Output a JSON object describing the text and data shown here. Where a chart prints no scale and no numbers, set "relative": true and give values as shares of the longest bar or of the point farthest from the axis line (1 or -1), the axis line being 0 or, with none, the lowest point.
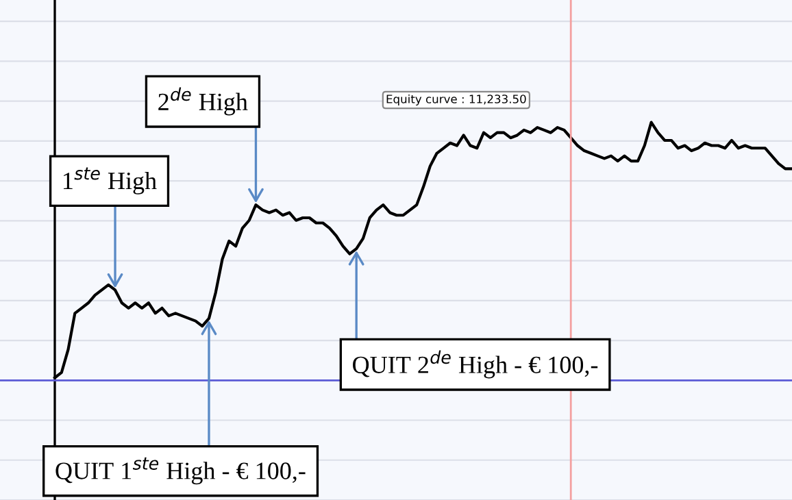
{
  "chart_data": {
    "type": "line",
    "relative": true,
    "grid": "y",
    "categories": [
      null,
      null,
      null,
      null,
      null,
      null,
      null,
      null,
      null,
      null,
      null,
      null,
      null,
      null,
      null,
      null,
      null,
      null,
      null,
      null,
      null,
      null,
      null,
      null,
      null,
      null,
      null,
      null,
      null,
      null,
      null,
      null,
      null,
      null,
      null,
      null,
      null,
      null,
      null,
      null,
      null,
      null,
      null,
      null,
      null,
      null,
      null,
      null,
      null,
      null,
      null,
      null,
      null,
      null,
      null,
      null,
      null,
      null,
      null,
      null,
      null,
      null,
      null,
      null,
      null,
      null,
      null,
      null,
      null,
      null,
      null,
      null,
      null,
      null,
      null,
      null,
      null,
      null,
      null,
      null,
      null,
      null,
      null,
      null,
      null,
      null,
      null,
      null,
      null,
      null,
      null,
      null,
      null,
      null,
      null,
      null,
      null,
      null,
      null,
      null,
      null,
      null,
      null,
      null,
      null,
      null,
      null,
      null,
      null,
      null,
      null
    ],
    "series": [
      {
        "color": "#000000",
        "values": [
          0.01,
          0.03,
          0.12,
          0.26,
          0.28,
          0.3,
          0.33,
          0.35,
          0.37,
          0.35,
          0.3,
          0.28,
          0.3,
          0.28,
          0.3,
          0.26,
          0.28,
          0.25,
          0.26,
          0.25,
          0.24,
          0.23,
          0.21,
          0.24,
          0.34,
          0.47,
          0.54,
          0.52,
          0.59,
          0.62,
          0.68,
          0.66,
          0.65,
          0.66,
          0.64,
          0.65,
          0.62,
          0.63,
          0.63,
          0.61,
          0.61,
          0.59,
          0.56,
          0.52,
          0.49,
          0.51,
          0.55,
          0.63,
          0.66,
          0.68,
          0.65,
          0.64,
          0.64,
          0.66,
          0.68,
          0.75,
          0.83,
          0.88,
          0.9,
          0.92,
          0.91,
          0.95,
          0.91,
          0.9,
          0.96,
          0.94,
          0.96,
          0.96,
          0.94,
          0.95,
          0.97,
          0.96,
          0.98,
          0.97,
          0.96,
          0.98,
          0.97,
          0.94,
          0.91,
          0.89,
          0.88,
          0.87,
          0.86,
          0.87,
          0.85,
          0.87,
          0.85,
          0.85,
          0.91,
          1,
          0.96,
          0.93,
          0.93,
          0.9,
          0.91,
          0.89,
          0.9,
          0.92,
          0.91,
          0.91,
          0.9,
          0.93,
          0.9,
          0.91,
          0.9,
          0.9,
          0.9,
          0.87,
          0.84,
          0.82,
          0.82
        ]
      }
    ],
    "annotations": [
      "1$^{ste}$ High",
      "2$^{de}$ High",
      "QUIT 2$^{de}$ High - € 100,-",
      "QUIT 1$^{ste}$ High - € 100,-",
      "Equity curve : 11,233.50"
    ]
  }
}
